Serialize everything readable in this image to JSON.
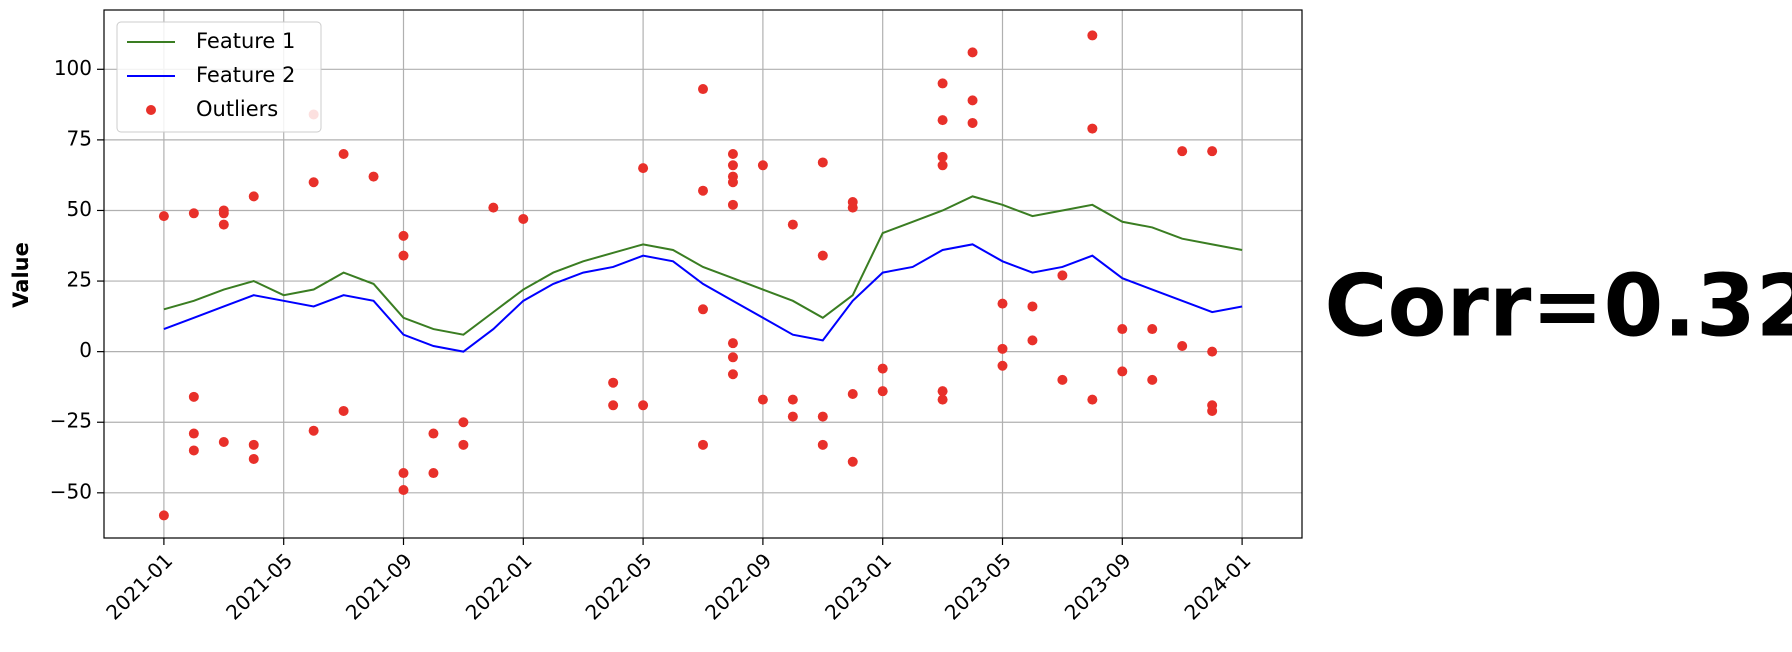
{
  "chart_data": {
    "type": "line",
    "ylabel": "Value",
    "annotation": "Corr=0.32",
    "annotation_color": "#ef8a8a",
    "grid": true,
    "legend": "upper left",
    "x": [
      "2021-01",
      "2021-02",
      "2021-03",
      "2021-04",
      "2021-05",
      "2021-06",
      "2021-07",
      "2021-08",
      "2021-09",
      "2021-10",
      "2021-11",
      "2021-12",
      "2022-01",
      "2022-02",
      "2022-03",
      "2022-04",
      "2022-05",
      "2022-06",
      "2022-07",
      "2022-08",
      "2022-09",
      "2022-10",
      "2022-11",
      "2022-12",
      "2023-01",
      "2023-02",
      "2023-03",
      "2023-04",
      "2023-05",
      "2023-06",
      "2023-07",
      "2023-08",
      "2023-09",
      "2023-10",
      "2023-11",
      "2023-12",
      "2024-01"
    ],
    "xlim": [
      "2020-11",
      "2024-03"
    ],
    "xticks": [
      "2021-01",
      "2021-05",
      "2021-09",
      "2022-01",
      "2022-05",
      "2022-09",
      "2023-01",
      "2023-05",
      "2023-09",
      "2024-01"
    ],
    "ylim": [
      -66,
      121
    ],
    "yticks": [
      {
        "value": -50,
        "label": "−50"
      },
      {
        "value": -25,
        "label": "−25"
      },
      0,
      25,
      50,
      75,
      100
    ],
    "series": [
      {
        "name": "Feature 1",
        "color": "#3a7d22",
        "values": [
          15,
          18,
          22,
          25,
          20,
          22,
          28,
          24,
          12,
          8,
          6,
          14,
          22,
          28,
          32,
          35,
          38,
          36,
          30,
          26,
          22,
          18,
          12,
          20,
          42,
          46,
          50,
          55,
          52,
          48,
          50,
          52,
          46,
          44,
          40,
          38,
          36
        ]
      },
      {
        "name": "Feature 2",
        "color": "#0000ff",
        "values": [
          8,
          12,
          16,
          20,
          18,
          16,
          20,
          18,
          6,
          2,
          0,
          8,
          18,
          24,
          28,
          30,
          34,
          32,
          24,
          18,
          12,
          6,
          4,
          18,
          28,
          30,
          36,
          38,
          32,
          28,
          30,
          34,
          26,
          22,
          18,
          14,
          16
        ]
      },
      {
        "name": "Outliers",
        "color": "#e8302a",
        "type": "scatter",
        "x": [
          "2021-01",
          "2021-01",
          "2021-02",
          "2021-02",
          "2021-02",
          "2021-02",
          "2021-03",
          "2021-03",
          "2021-03",
          "2021-03",
          "2021-04",
          "2021-04",
          "2021-04",
          "2021-06",
          "2021-06",
          "2021-06",
          "2021-07",
          "2021-07",
          "2021-08",
          "2021-09",
          "2021-09",
          "2021-09",
          "2021-09",
          "2021-10",
          "2021-10",
          "2021-11",
          "2021-11",
          "2021-12",
          "2022-01",
          "2022-04",
          "2022-04",
          "2022-05",
          "2022-05",
          "2022-07",
          "2022-07",
          "2022-07",
          "2022-07",
          "2022-08",
          "2022-08",
          "2022-08",
          "2022-08",
          "2022-08",
          "2022-08",
          "2022-08",
          "2022-08",
          "2022-09",
          "2022-09",
          "2022-10",
          "2022-10",
          "2022-10",
          "2022-11",
          "2022-11",
          "2022-11",
          "2022-11",
          "2022-12",
          "2022-12",
          "2022-12",
          "2022-12",
          "2023-01",
          "2023-01",
          "2023-03",
          "2023-03",
          "2023-03",
          "2023-03",
          "2023-03",
          "2023-03",
          "2023-04",
          "2023-04",
          "2023-04",
          "2023-05",
          "2023-05",
          "2023-05",
          "2023-06",
          "2023-06",
          "2023-07",
          "2023-07",
          "2023-08",
          "2023-08",
          "2023-08",
          "2023-09",
          "2023-09",
          "2023-10",
          "2023-10",
          "2023-11",
          "2023-11",
          "2023-12",
          "2023-12",
          "2023-12",
          "2023-12"
        ],
        "values": [
          48,
          -58,
          49,
          -29,
          -35,
          -16,
          50,
          -32,
          49,
          45,
          -33,
          55,
          -38,
          84,
          60,
          -28,
          70,
          -21,
          62,
          -43,
          -49,
          41,
          34,
          -29,
          -43,
          -25,
          -33,
          51,
          47,
          -11,
          -19,
          65,
          -19,
          93,
          57,
          -33,
          15,
          60,
          52,
          62,
          70,
          -2,
          3,
          66,
          -8,
          66,
          -17,
          45,
          -17,
          -23,
          67,
          34,
          -33,
          -23,
          53,
          51,
          -39,
          -15,
          -6,
          -14,
          95,
          82,
          -17,
          66,
          69,
          -14,
          89,
          81,
          106,
          -5,
          17,
          1,
          16,
          4,
          27,
          -10,
          79,
          -17,
          112,
          8,
          -7,
          -10,
          8,
          71,
          2,
          -19,
          -21,
          71,
          0
        ]
      }
    ]
  }
}
